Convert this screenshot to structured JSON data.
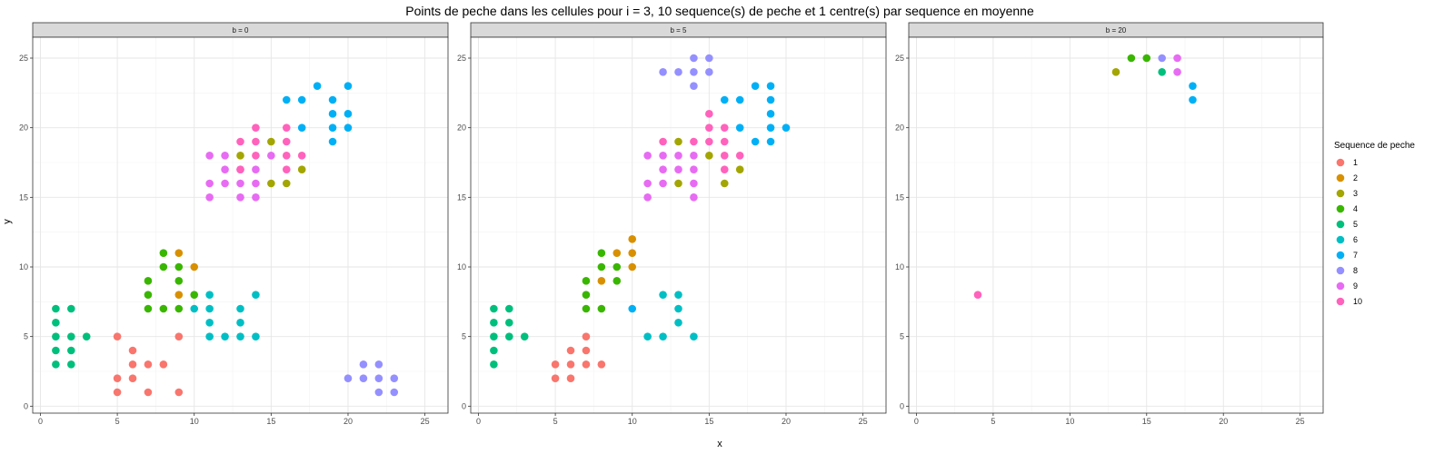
{
  "chart_data": {
    "type": "scatter",
    "title": "Points de peche dans les cellules pour i = 3, 10 sequence(s) de peche et 1 centre(s) par sequence en moyenne",
    "xlabel": "x",
    "ylabel": "y",
    "xlim": [
      -0.5,
      26.5
    ],
    "ylim": [
      -0.5,
      26.5
    ],
    "x_ticks": [
      0,
      5,
      10,
      15,
      20,
      25
    ],
    "y_ticks": [
      0,
      5,
      10,
      15,
      20,
      25
    ],
    "grid": true,
    "legend": {
      "title": "Sequence de peche",
      "placement": "right",
      "entries": [
        {
          "label": "1",
          "color": "#F8766D"
        },
        {
          "label": "2",
          "color": "#D89000"
        },
        {
          "label": "3",
          "color": "#A3A500"
        },
        {
          "label": "4",
          "color": "#39B600"
        },
        {
          "label": "5",
          "color": "#00BF7D"
        },
        {
          "label": "6",
          "color": "#00BFC4"
        },
        {
          "label": "7",
          "color": "#00B0F6"
        },
        {
          "label": "8",
          "color": "#9590FF"
        },
        {
          "label": "9",
          "color": "#E76BF3"
        },
        {
          "label": "10",
          "color": "#FF62BC"
        }
      ]
    },
    "panels": [
      {
        "strip": "b = 0",
        "points": [
          [
            5,
            5,
            1
          ],
          [
            6,
            4,
            1
          ],
          [
            5,
            2,
            1
          ],
          [
            6,
            3,
            1
          ],
          [
            6,
            2,
            1
          ],
          [
            7,
            3,
            1
          ],
          [
            8,
            3,
            1
          ],
          [
            5,
            1,
            1
          ],
          [
            7,
            1,
            1
          ],
          [
            9,
            1,
            1
          ],
          [
            9,
            5,
            1
          ],
          [
            9,
            11,
            2
          ],
          [
            10,
            10,
            2
          ],
          [
            9,
            8,
            2
          ],
          [
            13,
            18,
            3
          ],
          [
            15,
            19,
            3
          ],
          [
            15,
            16,
            3
          ],
          [
            16,
            16,
            3
          ],
          [
            17,
            17,
            3
          ],
          [
            8,
            11,
            4
          ],
          [
            7,
            9,
            4
          ],
          [
            8,
            10,
            4
          ],
          [
            9,
            10,
            4
          ],
          [
            9,
            9,
            4
          ],
          [
            7,
            8,
            4
          ],
          [
            7,
            7,
            4
          ],
          [
            8,
            7,
            4
          ],
          [
            9,
            7,
            4
          ],
          [
            10,
            8,
            4
          ],
          [
            1,
            7,
            5
          ],
          [
            2,
            7,
            5
          ],
          [
            1,
            6,
            5
          ],
          [
            1,
            5,
            5
          ],
          [
            2,
            5,
            5
          ],
          [
            3,
            5,
            5
          ],
          [
            1,
            4,
            5
          ],
          [
            2,
            4,
            5
          ],
          [
            1,
            3,
            5
          ],
          [
            2,
            3,
            5
          ],
          [
            10,
            7,
            6
          ],
          [
            11,
            8,
            6
          ],
          [
            11,
            7,
            6
          ],
          [
            11,
            6,
            6
          ],
          [
            13,
            7,
            6
          ],
          [
            13,
            6,
            6
          ],
          [
            14,
            8,
            6
          ],
          [
            11,
            5,
            6
          ],
          [
            12,
            5,
            6
          ],
          [
            13,
            5,
            6
          ],
          [
            14,
            5,
            6
          ],
          [
            18,
            23,
            7
          ],
          [
            16,
            22,
            7
          ],
          [
            17,
            22,
            7
          ],
          [
            19,
            22,
            7
          ],
          [
            20,
            23,
            7
          ],
          [
            19,
            21,
            7
          ],
          [
            20,
            21,
            7
          ],
          [
            17,
            20,
            7
          ],
          [
            19,
            20,
            7
          ],
          [
            20,
            20,
            7
          ],
          [
            19,
            19,
            7
          ],
          [
            21,
            3,
            8
          ],
          [
            22,
            3,
            8
          ],
          [
            20,
            2,
            8
          ],
          [
            21,
            2,
            8
          ],
          [
            22,
            2,
            8
          ],
          [
            23,
            2,
            8
          ],
          [
            22,
            1,
            8
          ],
          [
            23,
            1,
            8
          ],
          [
            11,
            18,
            9
          ],
          [
            12,
            18,
            9
          ],
          [
            12,
            17,
            9
          ],
          [
            13,
            17,
            9
          ],
          [
            14,
            17,
            9
          ],
          [
            15,
            18,
            9
          ],
          [
            11,
            16,
            9
          ],
          [
            12,
            16,
            9
          ],
          [
            13,
            16,
            9
          ],
          [
            14,
            16,
            9
          ],
          [
            11,
            15,
            9
          ],
          [
            13,
            15,
            9
          ],
          [
            14,
            15,
            9
          ],
          [
            14,
            20,
            10
          ],
          [
            13,
            19,
            10
          ],
          [
            14,
            19,
            10
          ],
          [
            16,
            20,
            10
          ],
          [
            16,
            19,
            10
          ],
          [
            14,
            18,
            10
          ],
          [
            16,
            18,
            10
          ],
          [
            17,
            18,
            10
          ],
          [
            13,
            17,
            10
          ],
          [
            16,
            17,
            10
          ]
        ]
      },
      {
        "strip": "b = 5",
        "points": [
          [
            7,
            5,
            1
          ],
          [
            6,
            4,
            1
          ],
          [
            7,
            4,
            1
          ],
          [
            5,
            3,
            1
          ],
          [
            6,
            3,
            1
          ],
          [
            7,
            3,
            1
          ],
          [
            8,
            3,
            1
          ],
          [
            5,
            2,
            1
          ],
          [
            6,
            2,
            1
          ],
          [
            10,
            12,
            2
          ],
          [
            9,
            11,
            2
          ],
          [
            10,
            11,
            2
          ],
          [
            8,
            9,
            2
          ],
          [
            10,
            10,
            2
          ],
          [
            13,
            19,
            3
          ],
          [
            15,
            18,
            3
          ],
          [
            13,
            16,
            3
          ],
          [
            16,
            16,
            3
          ],
          [
            17,
            17,
            3
          ],
          [
            8,
            11,
            4
          ],
          [
            8,
            10,
            4
          ],
          [
            9,
            10,
            4
          ],
          [
            7,
            9,
            4
          ],
          [
            9,
            9,
            4
          ],
          [
            7,
            8,
            4
          ],
          [
            7,
            7,
            4
          ],
          [
            8,
            7,
            4
          ],
          [
            1,
            7,
            5
          ],
          [
            2,
            7,
            5
          ],
          [
            1,
            6,
            5
          ],
          [
            2,
            6,
            5
          ],
          [
            1,
            5,
            5
          ],
          [
            2,
            5,
            5
          ],
          [
            3,
            5,
            5
          ],
          [
            1,
            4,
            5
          ],
          [
            1,
            3,
            5
          ],
          [
            12,
            8,
            6
          ],
          [
            13,
            8,
            6
          ],
          [
            13,
            7,
            6
          ],
          [
            13,
            6,
            6
          ],
          [
            11,
            5,
            6
          ],
          [
            12,
            5,
            6
          ],
          [
            14,
            5,
            6
          ],
          [
            10,
            7,
            7
          ],
          [
            16,
            22,
            7
          ],
          [
            17,
            22,
            7
          ],
          [
            18,
            23,
            7
          ],
          [
            19,
            23,
            7
          ],
          [
            19,
            22,
            7
          ],
          [
            19,
            21,
            7
          ],
          [
            17,
            20,
            7
          ],
          [
            19,
            20,
            7
          ],
          [
            20,
            20,
            7
          ],
          [
            18,
            19,
            7
          ],
          [
            19,
            19,
            7
          ],
          [
            14,
            25,
            8
          ],
          [
            15,
            25,
            8
          ],
          [
            12,
            24,
            8
          ],
          [
            13,
            24,
            8
          ],
          [
            14,
            24,
            8
          ],
          [
            15,
            24,
            8
          ],
          [
            14,
            23,
            8
          ],
          [
            11,
            18,
            9
          ],
          [
            12,
            18,
            9
          ],
          [
            13,
            18,
            9
          ],
          [
            14,
            18,
            9
          ],
          [
            12,
            17,
            9
          ],
          [
            13,
            17,
            9
          ],
          [
            14,
            17,
            9
          ],
          [
            11,
            16,
            9
          ],
          [
            12,
            16,
            9
          ],
          [
            14,
            16,
            9
          ],
          [
            11,
            15,
            9
          ],
          [
            14,
            15,
            9
          ],
          [
            15,
            21,
            10
          ],
          [
            15,
            20,
            10
          ],
          [
            16,
            20,
            10
          ],
          [
            14,
            19,
            10
          ],
          [
            15,
            19,
            10
          ],
          [
            16,
            19,
            10
          ],
          [
            12,
            19,
            10
          ],
          [
            16,
            18,
            10
          ],
          [
            17,
            18,
            10
          ],
          [
            16,
            17,
            10
          ]
        ]
      },
      {
        "strip": "b = 20",
        "points": [
          [
            13,
            24,
            3
          ],
          [
            14,
            25,
            4
          ],
          [
            15,
            25,
            4
          ],
          [
            16,
            24,
            5
          ],
          [
            16,
            25,
            8
          ],
          [
            17,
            25,
            9
          ],
          [
            17,
            24,
            9
          ],
          [
            18,
            23,
            7
          ],
          [
            18,
            22,
            7
          ],
          [
            4,
            8,
            10
          ]
        ]
      }
    ]
  }
}
